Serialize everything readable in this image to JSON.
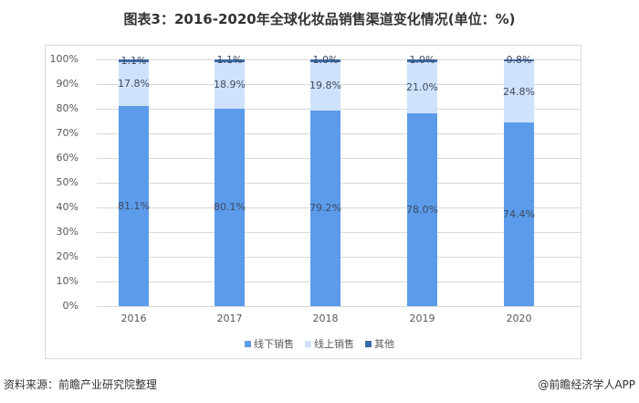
{
  "title": "图表3：2016-2020年全球化妆品销售渠道变化情况(单位：%)",
  "footer": {
    "source": "资料来源：前瞻产业研究院整理",
    "credit": "@前瞻经济学人APP"
  },
  "colors": {
    "offline": "#5b9bea",
    "online": "#cfe2fb",
    "other": "#3a6aa8",
    "grid": "#d9d9d9"
  },
  "chart_data": {
    "type": "bar",
    "stacked": true,
    "percent_stacked": true,
    "title": "图表3：2016-2020年全球化妆品销售渠道变化情况(单位：%)",
    "xlabel": "",
    "ylabel": "",
    "ylim": [
      0,
      100
    ],
    "yticks": [
      "0%",
      "10%",
      "20%",
      "30%",
      "40%",
      "50%",
      "60%",
      "70%",
      "80%",
      "90%",
      "100%"
    ],
    "grid": true,
    "legend_position": "bottom",
    "categories": [
      "2016",
      "2017",
      "2018",
      "2019",
      "2020"
    ],
    "series": [
      {
        "name": "线下销售",
        "values": [
          81.1,
          80.1,
          79.2,
          78.0,
          74.4
        ],
        "labels": [
          "81.1%",
          "80.1%",
          "79.2%",
          "78.0%",
          "74.4%"
        ]
      },
      {
        "name": "线上销售",
        "values": [
          17.8,
          18.9,
          19.8,
          21.0,
          24.8
        ],
        "labels": [
          "17.8%",
          "18.9%",
          "19.8%",
          "21.0%",
          "24.8%"
        ]
      },
      {
        "name": "其他",
        "values": [
          1.1,
          1.1,
          1.0,
          1.0,
          0.8
        ],
        "labels": [
          "1.1%",
          "1.1%",
          "1.0%",
          "1.0%",
          "0.8%"
        ]
      }
    ]
  }
}
